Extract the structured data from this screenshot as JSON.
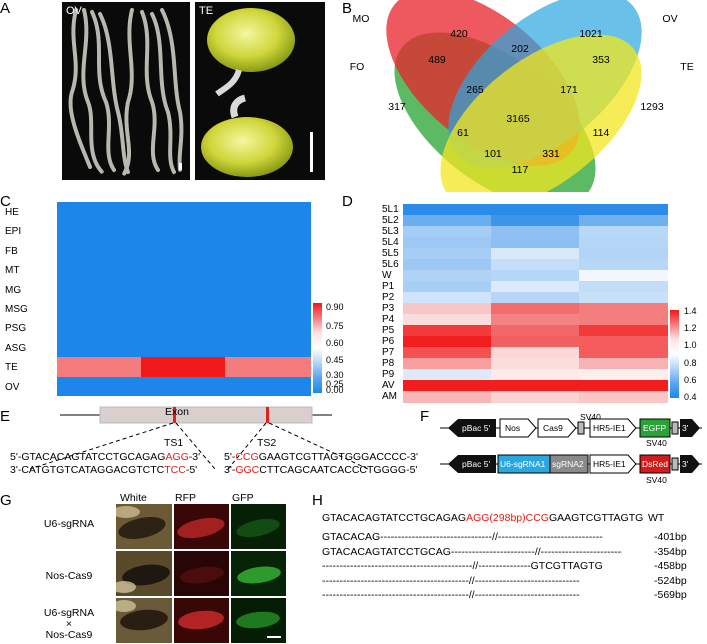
{
  "panels": {
    "A": "A",
    "B": "B",
    "C": "C",
    "D": "D",
    "E": "E",
    "F": "F",
    "G": "G",
    "H": "H"
  },
  "panelA": {
    "photo1_label": "OV",
    "photo2_label": "TE"
  },
  "venn": {
    "sets": [
      {
        "name": "MO",
        "color": "#e8212a"
      },
      {
        "name": "OV",
        "color": "#2aa7e0"
      },
      {
        "name": "FO",
        "color": "#3fae49"
      },
      {
        "name": "TE",
        "color": "#f2e51e"
      }
    ],
    "counts": {
      "c420": "420",
      "c1021": "1021",
      "c317": "317",
      "c1293": "1293",
      "c202": "202",
      "c489": "489",
      "c353": "353",
      "c265": "265",
      "c171": "171",
      "c3165": "3165",
      "c61": "61",
      "c114": "114",
      "c101": "101",
      "c331": "331",
      "c117": "117"
    }
  },
  "heatmapC": {
    "rows": [
      "HE",
      "EPI",
      "FB",
      "MT",
      "MG",
      "MSG",
      "PSG",
      "ASG",
      "TE",
      "OV"
    ],
    "legend_ticks": [
      "0.90",
      "0.75",
      "0.60",
      "0.45",
      "0.30",
      "0.25",
      "0.00"
    ]
  },
  "heatmapD": {
    "rows": [
      "5L1",
      "5L2",
      "5L3",
      "5L4",
      "5L5",
      "5L6",
      "W",
      "P1",
      "P2",
      "P3",
      "P4",
      "P5",
      "P6",
      "P7",
      "P8",
      "P9",
      "AV",
      "AM"
    ],
    "colors": [
      [
        "#2b8be8",
        "#2b8be8",
        "#2b8be8"
      ],
      [
        "#6aaef0",
        "#3d95ea",
        "#6fb1ef"
      ],
      [
        "#a4ccf5",
        "#8ec0f4",
        "#b8d8f8"
      ],
      [
        "#9ec9f5",
        "#8ebff3",
        "#b6d6f7"
      ],
      [
        "#a5cdf5",
        "#d9e9fb",
        "#b3d4f7"
      ],
      [
        "#9dc8f4",
        "#c4ddf8",
        "#b7d7f7"
      ],
      [
        "#b0d2f6",
        "#b6d5f7",
        "#f4f8fe"
      ],
      [
        "#a7cff5",
        "#dceafb",
        "#c3ddf8"
      ],
      [
        "#cfe3fa",
        "#b7d6f7",
        "#c9e0f9"
      ],
      [
        "#f7c6c6",
        "#f26c6c",
        "#f47d7d"
      ],
      [
        "#fbdcdc",
        "#f48484",
        "#f47d7d"
      ],
      [
        "#f23a3a",
        "#f26868",
        "#f23a3a"
      ],
      [
        "#f21e1e",
        "#f25f5f",
        "#f65c5c"
      ],
      [
        "#f45252",
        "#fbd7d7",
        "#f25c5c"
      ],
      [
        "#f99f9f",
        "#fcdcdc",
        "#f7b3b3"
      ],
      [
        "#dceafb",
        "#fceaea",
        "#fdeeee"
      ],
      [
        "#f21e1e",
        "#f21e1e",
        "#f21e1e"
      ],
      [
        "#f8b6b6",
        "#fbd2d2",
        "#fac6c6"
      ]
    ],
    "legend_ticks": [
      "1.4",
      "1.2",
      "1.0",
      "0.8",
      "0.6",
      "0.4"
    ]
  },
  "panelE": {
    "exon": "Exon",
    "ts1": "TS1",
    "ts2": "TS2",
    "s1_top_a": "5'-GTACACAGTATCCTGCAGAG",
    "s1_top_b": "AGG",
    "s1_top_c": "-3'",
    "s1_bot_a": "3'-CATGTGTCATAGGACGTCTC",
    "s1_bot_b": "TCC",
    "s1_bot_c": "-5'",
    "s2_top_a": "5'-",
    "s2_top_b": "CCG",
    "s2_top_c": "GAAGTCGTTAGTGGGACCCC-3'",
    "s2_bot_a": "3'-",
    "s2_bot_b": "GGC",
    "s2_bot_c": "CTTCAGCAATCACCCTGGGG-5'"
  },
  "panelF": {
    "c1": {
      "pbac": "pBac 5'",
      "nos": "Nos",
      "cas9": "Cas9",
      "sv40a": "SV40",
      "hr5": "HR5-IE1",
      "egfp": "EGFP",
      "sv40b": "SV40",
      "three": "3'"
    },
    "c2": {
      "pbac": "pBac 5'",
      "u6": "U6-sgRNA1",
      "sg2": "sgRNA2",
      "hr5": "HR5-IE1",
      "dsred": "DsRed",
      "sv40b": "SV40",
      "three": "3'"
    }
  },
  "panelG": {
    "cols": [
      "White",
      "RFP",
      "GFP"
    ],
    "row1": "U6-sgRNA",
    "row2": "Nos-Cas9",
    "row3a": "U6-sgRNA",
    "row3b": "×",
    "row3c": "Nos-Cas9"
  },
  "panelH": {
    "wt_a": "GTACACAGTATCCTGCAGAG",
    "wt_b": "AGG(298bp)CCG",
    "wt_c": "GAAGTCGTTAGTG",
    "wt_label": "WT",
    "lines": [
      {
        "seq": "GTACACAG--------------------------------//------------------------------",
        "label": "-401bp"
      },
      {
        "seq": "GTACACAGTATCCTGCAG------------------------//------------------------------",
        "label": "-354bp"
      },
      {
        "seq": "-------------------------------------------//---------------GTCGTTAGTG",
        "label": "-458bp"
      },
      {
        "seq": "------------------------------------------//------------------------------",
        "label": "-524bp"
      },
      {
        "seq": "------------------------------------------//------------------------------",
        "label": "-569bp"
      }
    ]
  }
}
